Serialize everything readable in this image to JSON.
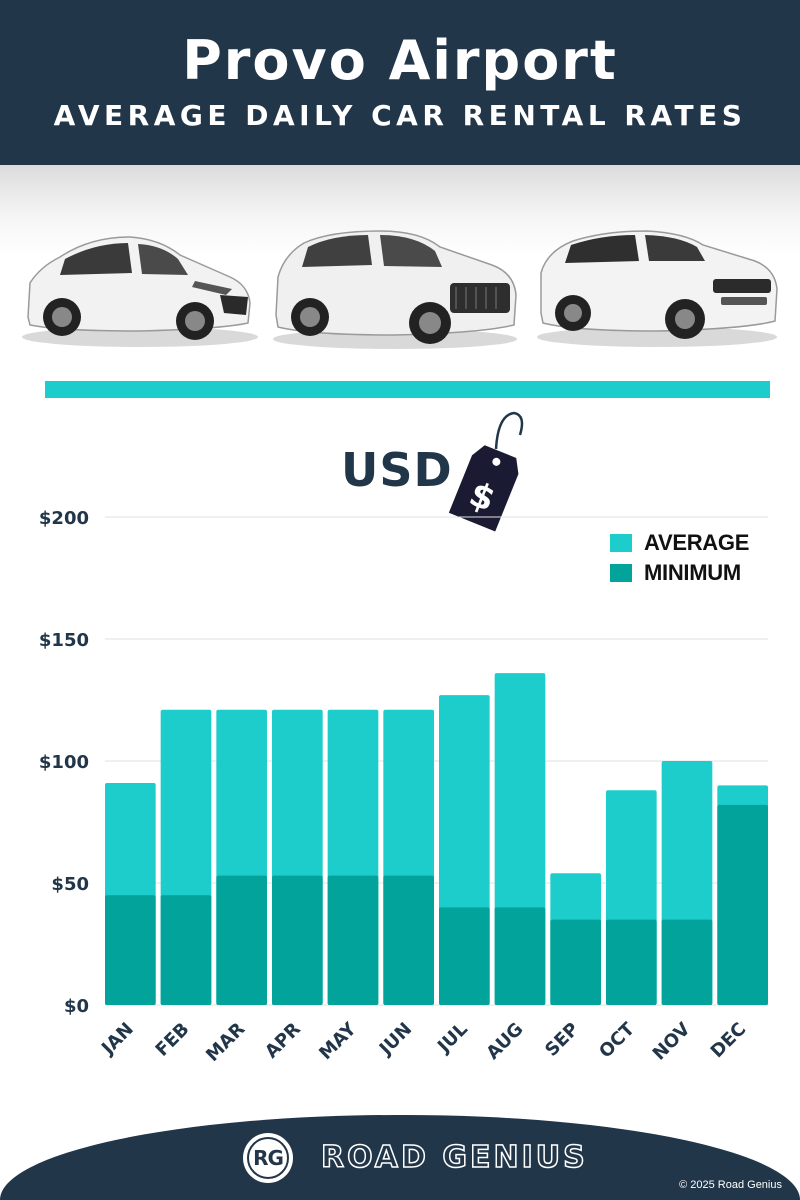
{
  "header": {
    "title": "Provo Airport",
    "subtitle": "AVERAGE DAILY CAR RENTAL RATES"
  },
  "cars": [
    {
      "name": "hatchback-car-icon"
    },
    {
      "name": "suv-car-icon"
    },
    {
      "name": "luxury-suv-car-icon"
    }
  ],
  "currency": {
    "label": "USD",
    "tag_symbol": "$"
  },
  "colors": {
    "navy": "#22364a",
    "average": "#1ccdcb",
    "minimum": "#02a39a"
  },
  "chart_data": {
    "type": "bar",
    "stacked": "overlay",
    "categories": [
      "JAN",
      "FEB",
      "MAR",
      "APR",
      "MAY",
      "JUN",
      "JUL",
      "AUG",
      "SEP",
      "OCT",
      "NOV",
      "DEC"
    ],
    "series": [
      {
        "name": "AVERAGE",
        "color": "#1ccdcb",
        "values": [
          91,
          121,
          121,
          121,
          121,
          121,
          127,
          136,
          54,
          88,
          100,
          90
        ]
      },
      {
        "name": "MINIMUM",
        "color": "#02a39a",
        "values": [
          45,
          45,
          53,
          53,
          53,
          53,
          40,
          40,
          35,
          35,
          35,
          82
        ]
      }
    ],
    "y_ticks": [
      "$0",
      "$50",
      "$100",
      "$150",
      "$200"
    ],
    "y_tick_values": [
      0,
      50,
      100,
      150,
      200
    ],
    "ylim": [
      0,
      200
    ],
    "grid": true,
    "legend_position": "top-right"
  },
  "footer": {
    "logo_text": "RG",
    "brand": "ROAD GENIUS",
    "copyright": "© 2025 Road Genius"
  }
}
